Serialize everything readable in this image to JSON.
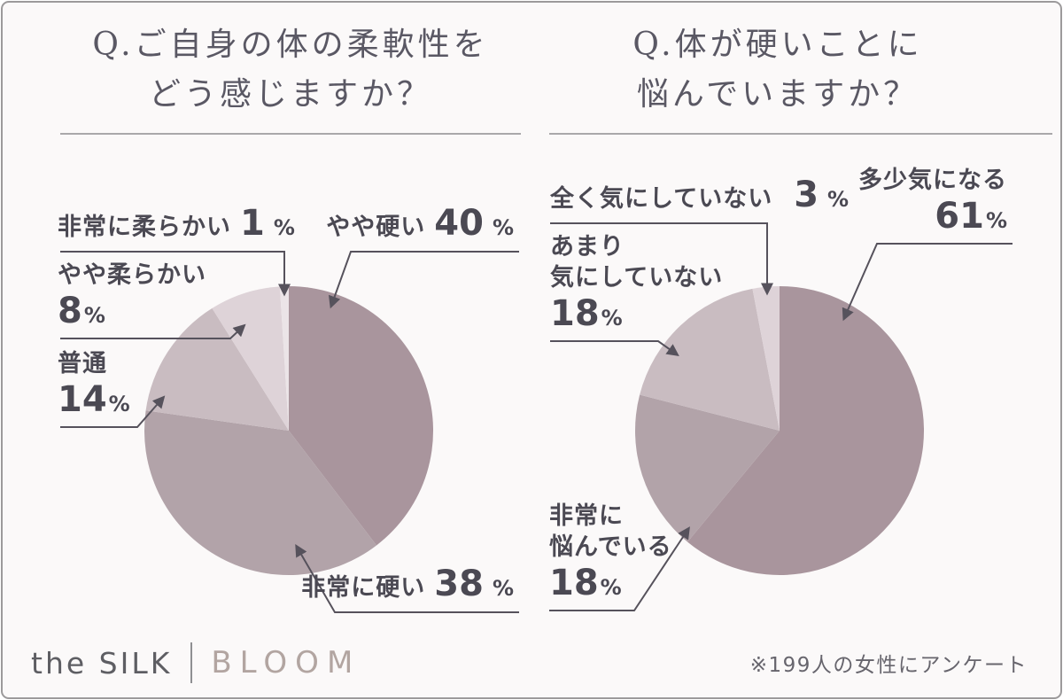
{
  "chart_data": [
    {
      "type": "pie",
      "title": "Q.ご自身の体の柔軟性をどう感じますか？",
      "title_lines": [
        "Q.ご自身の体の柔軟性を",
        "どう感じますか？"
      ],
      "labels": [
        "やや硬い",
        "非常に硬い",
        "普通",
        "やや柔らかい",
        "非常に柔らかい"
      ],
      "values": [
        40,
        38,
        14,
        8,
        1
      ],
      "colors": [
        "#a9959d",
        "#b2a3a9",
        "#c9bcc1",
        "#ded3d8",
        "#ebe4e7"
      ],
      "ids": [
        "somewhat-stiff",
        "very-stiff",
        "normal",
        "somewhat-flexible",
        "very-flexible"
      ],
      "start_angle_deg": 0,
      "direction": "clockwise",
      "legend": "none",
      "callouts": [
        {
          "id": "very-flexible",
          "lines": [
            "非常に柔らかい"
          ],
          "value": "1"
        },
        {
          "id": "somewhat-flexible",
          "lines": [
            "やや柔らかい"
          ],
          "value": "8"
        },
        {
          "id": "normal",
          "lines": [
            "普通"
          ],
          "value": "14"
        },
        {
          "id": "somewhat-stiff",
          "lines": [
            "やや硬い"
          ],
          "value": "40"
        },
        {
          "id": "very-stiff",
          "lines": [
            "非常に硬い"
          ],
          "value": "38"
        }
      ]
    },
    {
      "type": "pie",
      "title": "Q.体が硬いことに悩んでいますか？",
      "title_lines": [
        "Q.体が硬いことに",
        "悩んでいますか？"
      ],
      "labels": [
        "多少気になる",
        "非常に悩んでいる",
        "あまり気にしていない",
        "全く気にしていない"
      ],
      "values": [
        61,
        18,
        18,
        3
      ],
      "colors": [
        "#a9959d",
        "#b2a3a9",
        "#c9bcc1",
        "#ded3d8"
      ],
      "ids": [
        "somewhat-concerned",
        "very-troubled",
        "not-much-concerned",
        "not-concerned-at-all"
      ],
      "start_angle_deg": 0,
      "direction": "clockwise",
      "legend": "none",
      "callouts": [
        {
          "id": "not-concerned-at-all",
          "lines": [
            "全く気にしていない"
          ],
          "value": "3"
        },
        {
          "id": "not-much-concerned",
          "lines": [
            "あまり",
            "気にしていない"
          ],
          "value": "18"
        },
        {
          "id": "somewhat-concerned",
          "lines": [
            "多少気になる"
          ],
          "value": "61"
        },
        {
          "id": "very-troubled",
          "lines": [
            "非常に",
            "悩んでいる"
          ],
          "value": "18"
        }
      ]
    }
  ],
  "ui": {
    "percent": "%"
  },
  "footer": {
    "brand_primary": "the SILK",
    "brand_secondary": "BLOOM",
    "note": "※199人の女性にアンケート"
  },
  "theme": {
    "card_background": "#fbf9f9",
    "card_border": "#9c9a9b",
    "title_color": "#5a5864",
    "label_color": "#4b4953",
    "leader_line_color": "#56525c"
  }
}
